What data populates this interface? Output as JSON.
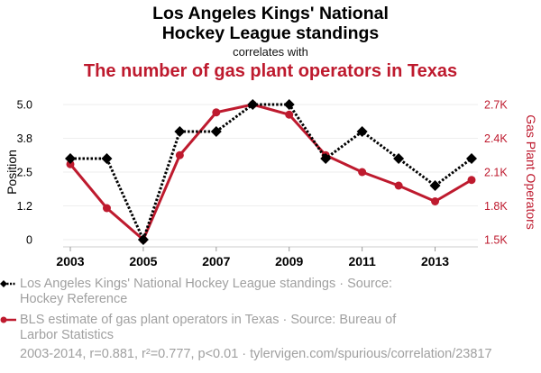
{
  "header": {
    "title_line1": "Los Angeles Kings' National",
    "title_line2": "Hockey League standings",
    "subtitle": "correlates with",
    "title2": "The number of gas plant operators in Texas"
  },
  "colors": {
    "series1": "#000000",
    "series2": "#be1a2e",
    "legend_text": "#a0a0a0",
    "grid": "#eeeeee"
  },
  "chart_data": {
    "type": "line",
    "title": "Los Angeles Kings' National Hockey League standings correlates with The number of gas plant operators in Texas",
    "x": [
      2003,
      2004,
      2005,
      2006,
      2007,
      2008,
      2009,
      2010,
      2011,
      2012,
      2013,
      2014
    ],
    "x_tick_labels": [
      "2003",
      "2005",
      "2007",
      "2009",
      "2011",
      "2013"
    ],
    "x_ticks": [
      2003,
      2005,
      2007,
      2009,
      2011,
      2013
    ],
    "xlim": [
      2003,
      2014
    ],
    "grid": true,
    "legend_position": "bottom",
    "axes": {
      "left": {
        "label": "Position",
        "ylim": [
          0,
          5
        ],
        "ticks": [
          0,
          1.25,
          2.5,
          3.75,
          5
        ],
        "tick_labels": [
          "0",
          "1.2",
          "2.5",
          "3.8",
          "5.0"
        ]
      },
      "right": {
        "label": "Gas Plant Operators",
        "ylim": [
          1500,
          2700
        ],
        "ticks": [
          1500,
          1800,
          2100,
          2400,
          2700
        ],
        "tick_labels": [
          "1.5K",
          "1.8K",
          "2.1K",
          "2.4K",
          "2.7K"
        ]
      }
    },
    "series": [
      {
        "name": "Los Angeles Kings' National Hockey League standings",
        "axis": "left",
        "style": "dotted",
        "marker": "diamond",
        "color": "#000000",
        "values": [
          3,
          3,
          0,
          4,
          4,
          5,
          5,
          3,
          4,
          3,
          2,
          3
        ]
      },
      {
        "name": "BLS estimate of gas plant operators in Texas",
        "axis": "right",
        "style": "solid",
        "marker": "circle",
        "color": "#be1a2e",
        "values": [
          2170,
          1780,
          1500,
          2250,
          2630,
          2700,
          2610,
          2250,
          2100,
          1980,
          1840,
          2030
        ]
      }
    ]
  },
  "legend": {
    "item1": "Los Angeles Kings' National Hockey League standings · Source: Hockey Reference",
    "item2": "BLS estimate of gas plant operators in Texas · Source: Bureau of Larbor Statistics"
  },
  "footer": "2003-2014, r=0.881, r²=0.777, p<0.01 · tylervigen.com/spurious/correlation/23817"
}
